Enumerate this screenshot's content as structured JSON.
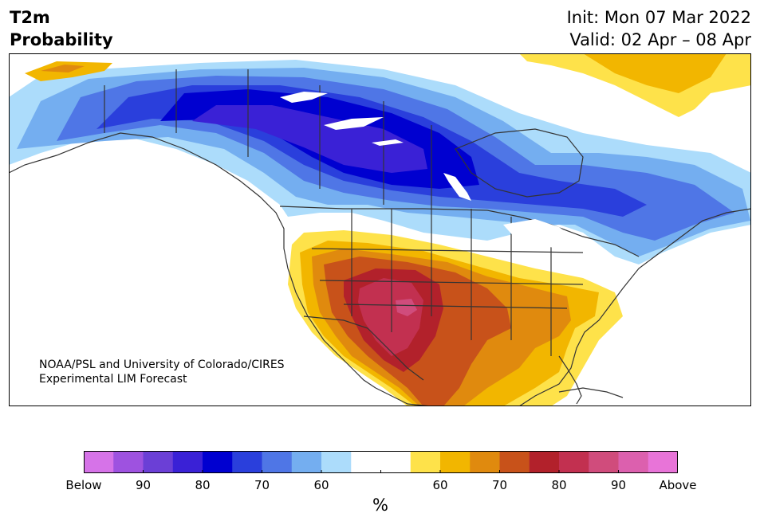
{
  "header": {
    "title_line1": "T2m",
    "title_line2": "Probability",
    "init": "Init: Mon 07 Mar 2022",
    "valid": "Valid: 02 Apr – 08 Apr"
  },
  "credit": {
    "line1": "NOAA/PSL and University of Colorado/CIRES",
    "line2": "Experimental LIM Forecast"
  },
  "colorbar": {
    "unit": "%",
    "colors": [
      "#d673e8",
      "#9e52e0",
      "#6b3fd6",
      "#3a21d6",
      "#0000d0",
      "#2a3fdc",
      "#4f76e6",
      "#74aef0",
      "#acdcfb",
      "#ffffff",
      "#ffffff",
      "#fee24a",
      "#f2b600",
      "#e08a0e",
      "#c8521a",
      "#b2212b",
      "#c23050",
      "#d04c7c",
      "#dc60ae",
      "#e874d8"
    ],
    "ticks": [
      {
        "index": 0,
        "label": "Below"
      },
      {
        "index": 2,
        "label": "90"
      },
      {
        "index": 4,
        "label": "80"
      },
      {
        "index": 6,
        "label": "70"
      },
      {
        "index": 8,
        "label": "60"
      },
      {
        "index": 10,
        "label": ""
      },
      {
        "index": 12,
        "label": "60"
      },
      {
        "index": 14,
        "label": "70"
      },
      {
        "index": 16,
        "label": "80"
      },
      {
        "index": 18,
        "label": "90"
      },
      {
        "index": 20,
        "label": "Above"
      }
    ]
  }
}
